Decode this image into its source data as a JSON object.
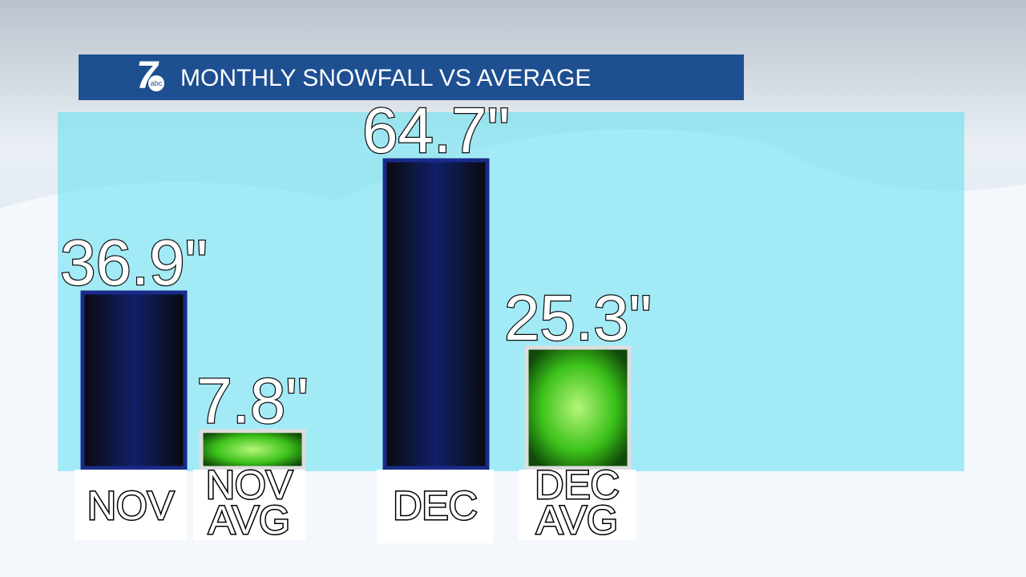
{
  "logo": {
    "number": "7",
    "network": "abc"
  },
  "chart_data": {
    "type": "bar",
    "title": "MONTHLY SNOWFALL VS AVERAGE",
    "categories": [
      "NOV",
      "NOV AVG",
      "DEC",
      "DEC AVG"
    ],
    "values": [
      36.9,
      7.8,
      64.7,
      25.3
    ],
    "value_labels": [
      "36.9\"",
      "7.8\"",
      "64.7\"",
      "25.3\""
    ],
    "colors": [
      "#1a2a8a",
      "#3cc21a",
      "#1a2a8a",
      "#3cc21a"
    ]
  }
}
